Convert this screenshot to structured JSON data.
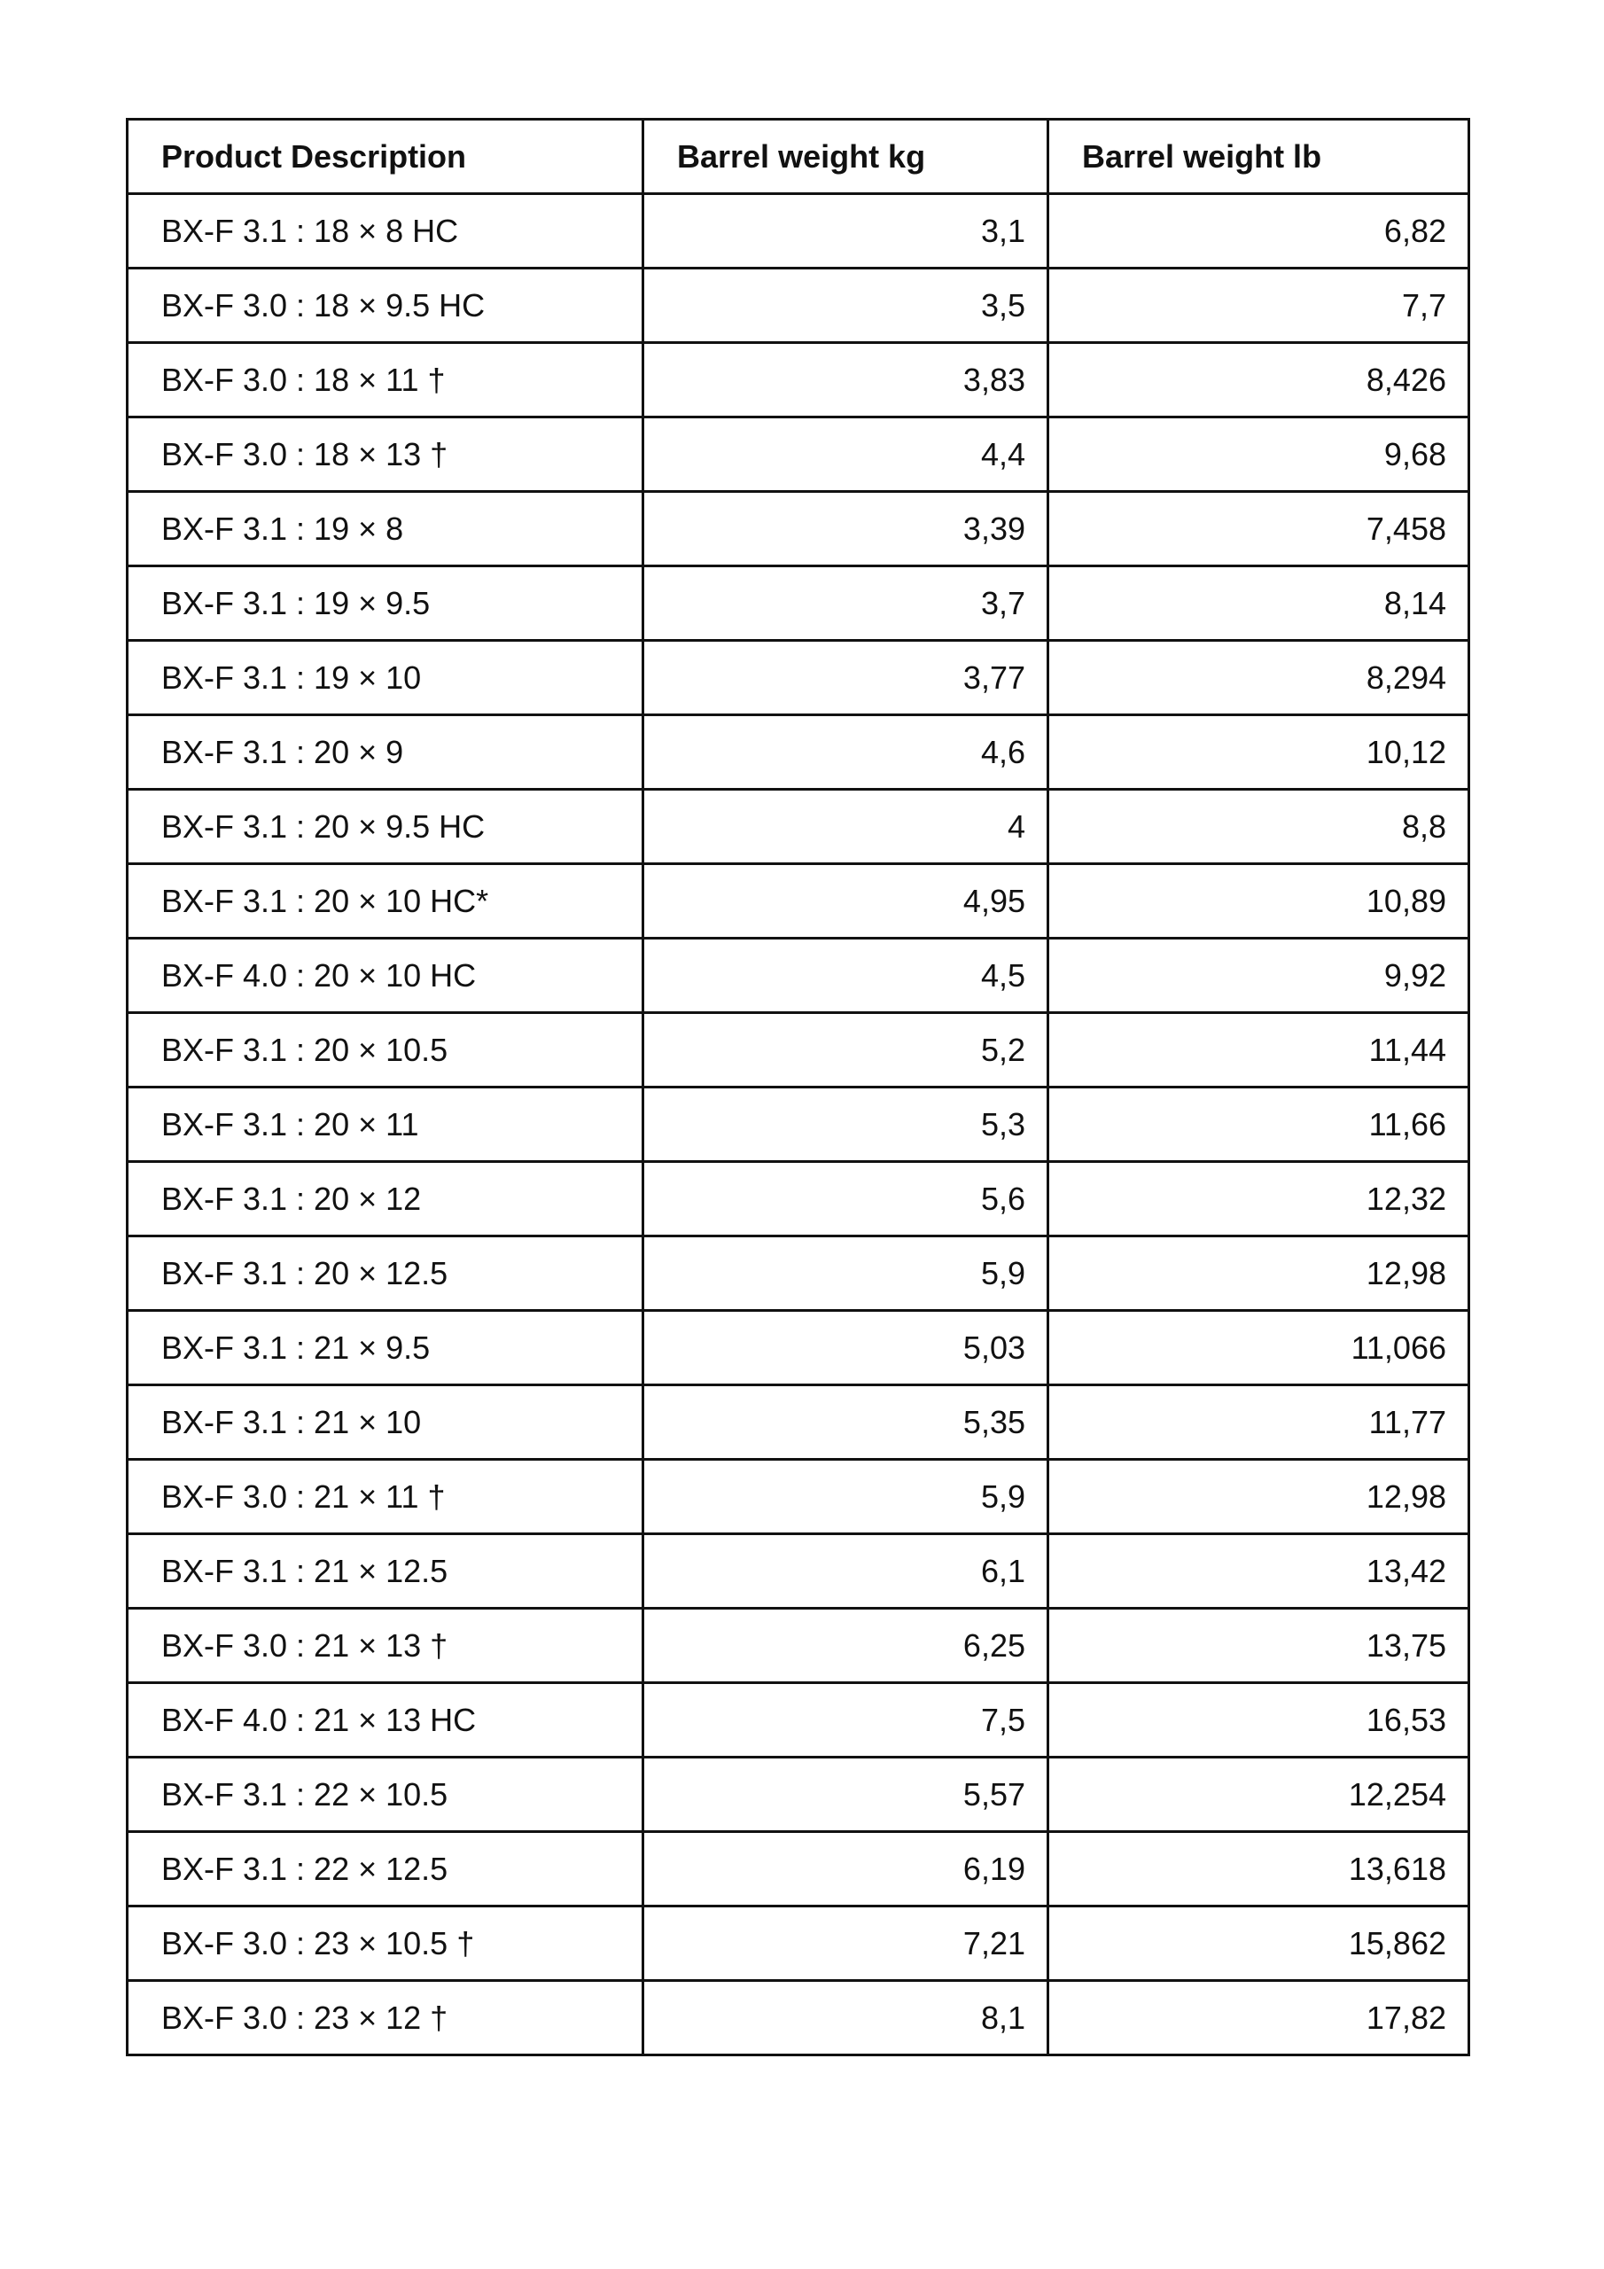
{
  "table": {
    "headers": [
      "Product Description",
      "Barrel weight kg",
      "Barrel weight lb"
    ],
    "rows": [
      [
        "BX-F 3.1 : 18 × 8 HC",
        "3,1",
        "6,82"
      ],
      [
        "BX-F 3.0 : 18 × 9.5 HC",
        "3,5",
        "7,7"
      ],
      [
        "BX-F 3.0 : 18 × 11 †",
        "3,83",
        "8,426"
      ],
      [
        "BX-F 3.0 : 18 × 13 †",
        "4,4",
        "9,68"
      ],
      [
        "BX-F 3.1 : 19 × 8",
        "3,39",
        "7,458"
      ],
      [
        "BX-F 3.1 : 19 × 9.5",
        "3,7",
        "8,14"
      ],
      [
        "BX-F 3.1 : 19 × 10",
        "3,77",
        "8,294"
      ],
      [
        "BX-F 3.1 : 20 × 9",
        "4,6",
        "10,12"
      ],
      [
        "BX-F 3.1 : 20 × 9.5 HC",
        "4",
        "8,8"
      ],
      [
        "BX-F 3.1 : 20 × 10 HC*",
        "4,95",
        "10,89"
      ],
      [
        "BX-F 4.0 : 20 × 10 HC",
        "4,5",
        "9,92"
      ],
      [
        "BX-F 3.1 : 20 × 10.5",
        "5,2",
        "11,44"
      ],
      [
        "BX-F 3.1 : 20 × 11",
        "5,3",
        "11,66"
      ],
      [
        "BX-F 3.1 : 20 × 12",
        "5,6",
        "12,32"
      ],
      [
        "BX-F 3.1 : 20 × 12.5",
        "5,9",
        "12,98"
      ],
      [
        "BX-F 3.1 : 21 × 9.5",
        "5,03",
        "11,066"
      ],
      [
        "BX-F 3.1 : 21 × 10",
        "5,35",
        "11,77"
      ],
      [
        "BX-F 3.0 : 21 × 11 †",
        "5,9",
        "12,98"
      ],
      [
        "BX-F 3.1 : 21 × 12.5",
        "6,1",
        "13,42"
      ],
      [
        "BX-F 3.0 : 21 × 13 †",
        "6,25",
        "13,75"
      ],
      [
        "BX-F 4.0 : 21 × 13 HC",
        "7,5",
        "16,53"
      ],
      [
        "BX-F 3.1 : 22 × 10.5",
        "5,57",
        "12,254"
      ],
      [
        "BX-F 3.1 : 22 × 12.5",
        "6,19",
        "13,618"
      ],
      [
        "BX-F 3.0 : 23 × 10.5 †",
        "7,21",
        "15,862"
      ],
      [
        "BX-F 3.0 : 23 × 12 †",
        "8,1",
        "17,82"
      ]
    ]
  }
}
